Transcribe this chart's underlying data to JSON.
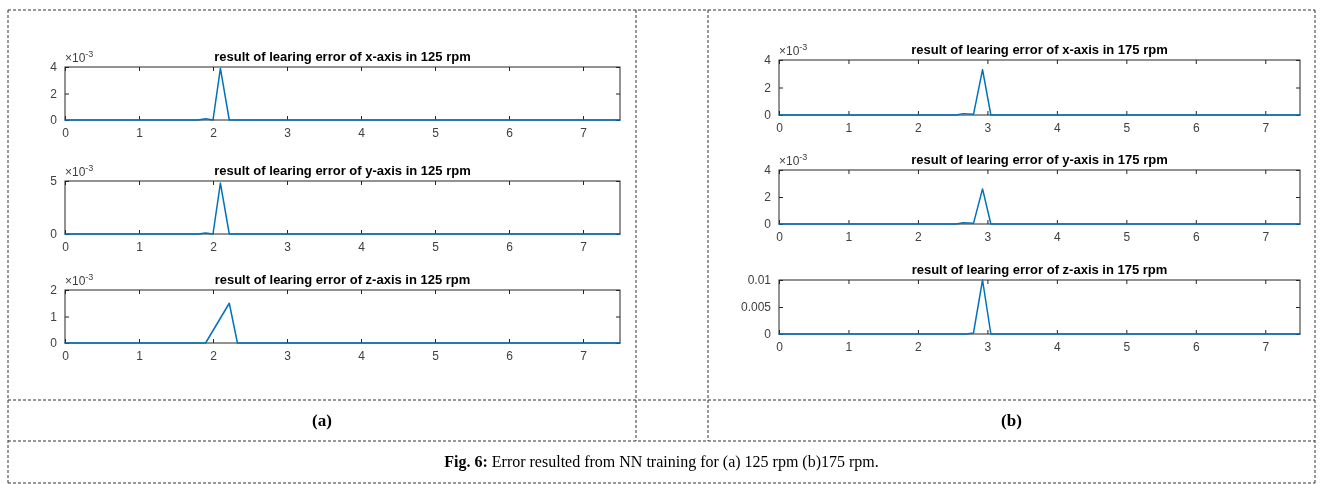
{
  "chart_data": [
    {
      "type": "line",
      "title": "result of learing error of x-axis in 125 rpm",
      "annotations": [
        "×10$^{-3}$"
      ],
      "xlim": [
        0,
        7.5
      ],
      "xticks": [
        0,
        1,
        2,
        3,
        4,
        5,
        6,
        7
      ],
      "ylim": [
        0,
        4
      ],
      "yticks": [
        0,
        2,
        4
      ],
      "grid": false,
      "series": [
        {
          "color": "#0072bd",
          "x": [
            0,
            1.8,
            1.9,
            2.0,
            2.1,
            2.22,
            7.5
          ],
          "values": [
            0,
            0,
            0.1,
            0,
            3.9,
            0,
            0
          ]
        }
      ]
    },
    {
      "type": "line",
      "title": "result of learing error of y-axis in 125 rpm",
      "annotations": [
        "×10$^{-3}$"
      ],
      "xlim": [
        0,
        7.5
      ],
      "xticks": [
        0,
        1,
        2,
        3,
        4,
        5,
        6,
        7
      ],
      "ylim": [
        0,
        5
      ],
      "yticks": [
        0,
        5
      ],
      "grid": false,
      "series": [
        {
          "color": "#0072bd",
          "x": [
            0,
            1.8,
            1.9,
            2.0,
            2.1,
            2.22,
            7.5
          ],
          "values": [
            0,
            0,
            0.1,
            0,
            4.8,
            0,
            0
          ]
        }
      ]
    },
    {
      "type": "line",
      "title": "result of learing error of z-axis in 125 rpm",
      "xlabel": "(a)",
      "annotations": [
        "×10$^{-3}$"
      ],
      "xlim": [
        0,
        7.5
      ],
      "xticks": [
        0,
        1,
        2,
        3,
        4,
        5,
        6,
        7
      ],
      "ylim": [
        0,
        2
      ],
      "yticks": [
        0,
        1,
        2
      ],
      "grid": false,
      "series": [
        {
          "color": "#0072bd",
          "x": [
            0,
            1.9,
            2.22,
            2.33,
            7.5
          ],
          "values": [
            0,
            0,
            1.5,
            0,
            0
          ]
        }
      ]
    },
    {
      "type": "line",
      "title": "result of learing error of x-axis in 175 rpm",
      "annotations": [
        "×10$^{-3}$"
      ],
      "xlim": [
        0,
        7.5
      ],
      "xticks": [
        0,
        1,
        2,
        3,
        4,
        5,
        6,
        7
      ],
      "ylim": [
        0,
        4
      ],
      "yticks": [
        0,
        2,
        4
      ],
      "grid": false,
      "series": [
        {
          "color": "#0072bd",
          "x": [
            0,
            2.55,
            2.65,
            2.8,
            2.93,
            3.05,
            7.5
          ],
          "values": [
            0,
            0,
            0.1,
            0.05,
            3.3,
            0,
            0
          ]
        }
      ]
    },
    {
      "type": "line",
      "title": "result of learing error of y-axis in 175 rpm",
      "annotations": [
        "×10$^{-3}$"
      ],
      "xlim": [
        0,
        7.5
      ],
      "xticks": [
        0,
        1,
        2,
        3,
        4,
        5,
        6,
        7
      ],
      "ylim": [
        0,
        4
      ],
      "yticks": [
        0,
        2,
        4
      ],
      "grid": false,
      "series": [
        {
          "color": "#0072bd",
          "x": [
            0,
            2.55,
            2.65,
            2.8,
            2.93,
            3.05,
            7.5
          ],
          "values": [
            0,
            0,
            0.1,
            0.05,
            2.6,
            0,
            0
          ]
        }
      ]
    },
    {
      "type": "line",
      "title": "result of learing error of z-axis in 175 rpm",
      "xlabel": "(b)",
      "annotations": [
        "Fig. 6: Error resulted from NN training for (a) 125 rpm (b)175 rpm."
      ],
      "xlim": [
        0,
        7.5
      ],
      "xticks": [
        0,
        1,
        2,
        3,
        4,
        5,
        6,
        7
      ],
      "ylim": [
        0,
        0.01
      ],
      "yticks": [
        0,
        0.005,
        0.01
      ],
      "grid": false,
      "series": [
        {
          "color": "#0072bd",
          "x": [
            0,
            2.7,
            2.8,
            2.93,
            3.05,
            7.5
          ],
          "values": [
            0,
            0,
            0.0002,
            0.01,
            0,
            0
          ]
        }
      ]
    }
  ]
}
